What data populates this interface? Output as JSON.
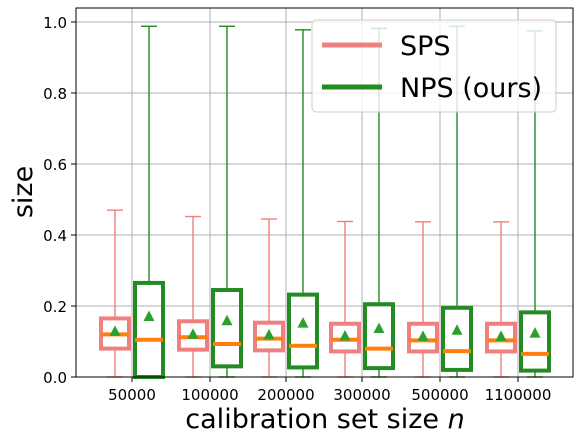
{
  "chart_data": {
    "type": "box",
    "title": "",
    "xlabel": "calibration set size",
    "xlabel_var": "n",
    "ylabel": "size",
    "ylim": [
      0,
      1.035
    ],
    "yticks": [
      0.0,
      0.2,
      0.4,
      0.6,
      0.8,
      1.0
    ],
    "ytick_labels": [
      "0.0",
      "0.2",
      "0.4",
      "0.6",
      "0.8",
      "1.0"
    ],
    "grid": true,
    "legend_position": "top-right",
    "categories": [
      "50000",
      "100000",
      "200000",
      "300000",
      "500000",
      "1100000"
    ],
    "series": [
      {
        "name": "SPS",
        "color": "#f08080",
        "median_color": "#ff7f0e",
        "mean_color": "#2ca02c",
        "boxes": [
          {
            "whislo": 0.0,
            "q1": 0.08,
            "med": 0.12,
            "q3": 0.165,
            "whishi": 0.47,
            "mean": 0.13
          },
          {
            "whislo": 0.0,
            "q1": 0.077,
            "med": 0.112,
            "q3": 0.157,
            "whishi": 0.452,
            "mean": 0.122
          },
          {
            "whislo": 0.0,
            "q1": 0.075,
            "med": 0.108,
            "q3": 0.153,
            "whishi": 0.445,
            "mean": 0.12
          },
          {
            "whislo": 0.0,
            "q1": 0.072,
            "med": 0.105,
            "q3": 0.15,
            "whishi": 0.438,
            "mean": 0.117
          },
          {
            "whislo": 0.0,
            "q1": 0.072,
            "med": 0.103,
            "q3": 0.15,
            "whishi": 0.437,
            "mean": 0.116
          },
          {
            "whislo": 0.0,
            "q1": 0.072,
            "med": 0.103,
            "q3": 0.15,
            "whishi": 0.437,
            "mean": 0.116
          }
        ]
      },
      {
        "name": "NPS (ours)",
        "color": "#228b22",
        "median_color": "#ff7f0e",
        "mean_color": "#2ca02c",
        "boxes": [
          {
            "whislo": 0.0,
            "q1": 0.0,
            "med": 0.105,
            "q3": 0.265,
            "whishi": 0.988,
            "mean": 0.172
          },
          {
            "whislo": 0.0,
            "q1": 0.03,
            "med": 0.093,
            "q3": 0.245,
            "whishi": 0.988,
            "mean": 0.16
          },
          {
            "whislo": 0.0,
            "q1": 0.027,
            "med": 0.088,
            "q3": 0.232,
            "whishi": 0.978,
            "mean": 0.153
          },
          {
            "whislo": 0.0,
            "q1": 0.025,
            "med": 0.08,
            "q3": 0.205,
            "whishi": 0.982,
            "mean": 0.138
          },
          {
            "whislo": 0.0,
            "q1": 0.02,
            "med": 0.073,
            "q3": 0.195,
            "whishi": 0.988,
            "mean": 0.133
          },
          {
            "whislo": 0.0,
            "q1": 0.018,
            "med": 0.065,
            "q3": 0.182,
            "whishi": 0.975,
            "mean": 0.125
          }
        ]
      }
    ]
  }
}
